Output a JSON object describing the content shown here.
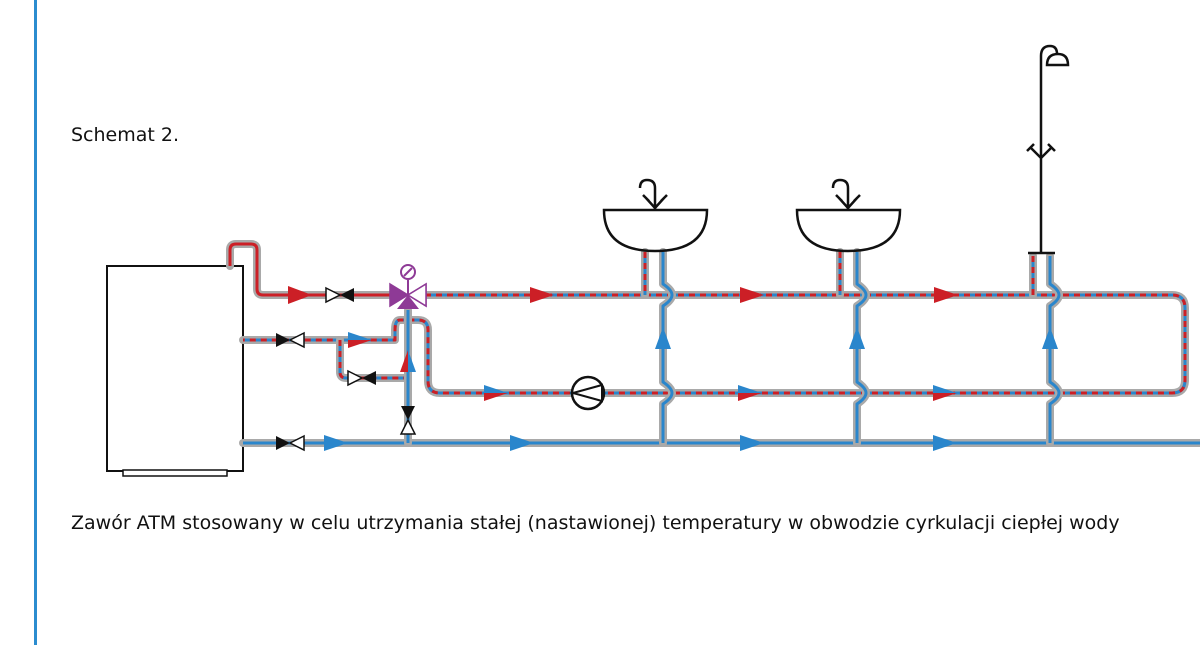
{
  "title": "Schemat 2.",
  "caption": "Zawór ATM stosowany w celu utrzymania stałej (nastawionej) temperatury w obwodzie cyrkulacji ciepłej wody",
  "colors": {
    "hot": "#cc1f26",
    "cold": "#2a86cc",
    "pipe_casing": "#a9a9a9",
    "mixing_valve": "#8e3a96",
    "frame": "#2b8ccf"
  },
  "legend_icons": [
    "boiler",
    "shutoff-valve",
    "thermostatic-mixing-valve",
    "circulation-pump",
    "washbasin",
    "shower"
  ]
}
